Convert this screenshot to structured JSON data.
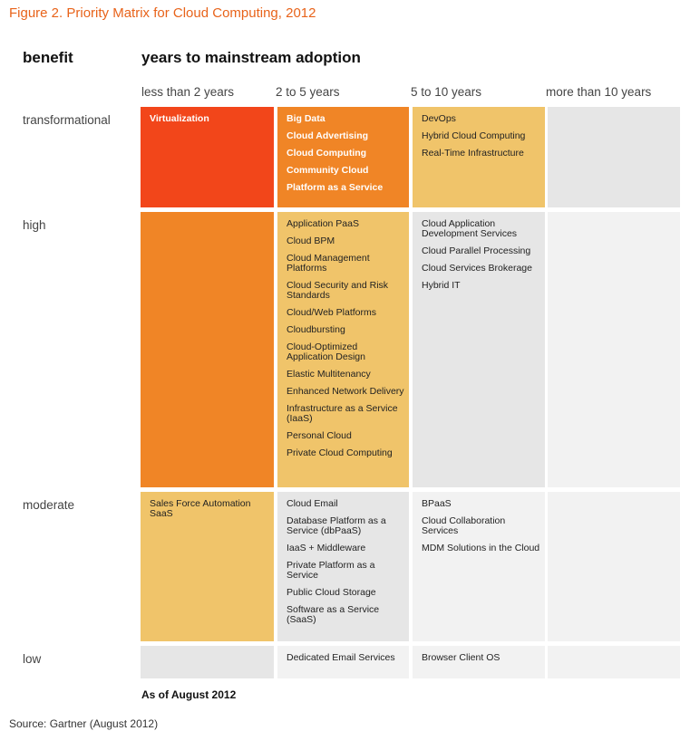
{
  "figure_title": "Figure 2. Priority Matrix for Cloud Computing, 2012",
  "headers": {
    "benefit": "benefit",
    "adoption": "years to mainstream adoption"
  },
  "columns": [
    "less than 2 years",
    "2 to 5 years",
    "5 to 10 years",
    "more than 10 years"
  ],
  "rows": [
    "transformational",
    "high",
    "moderate",
    "low"
  ],
  "colors": {
    "red": "#f2461a",
    "orange": "#f08526",
    "amber": "#f0c46a",
    "gray": "#e6e6e6",
    "light": "#f2f2f2"
  },
  "cells": {
    "transformational": {
      "lt2": {
        "color": "red",
        "bold": true,
        "items": [
          "Virtualization"
        ]
      },
      "y2to5": {
        "color": "orange",
        "bold": true,
        "items": [
          "Big Data",
          "Cloud Advertising",
          "Cloud Computing",
          "Community Cloud",
          "Platform as a Service"
        ]
      },
      "y5to10": {
        "color": "amber",
        "bold": false,
        "items": [
          "DevOps",
          "Hybrid Cloud Computing",
          "Real-Time Infrastructure"
        ]
      },
      "gt10": {
        "color": "gray",
        "bold": false,
        "items": []
      }
    },
    "high": {
      "lt2": {
        "color": "orange",
        "bold": false,
        "items": []
      },
      "y2to5": {
        "color": "amber",
        "bold": false,
        "items": [
          "Application PaaS",
          "Cloud BPM",
          "Cloud Management Platforms",
          "Cloud Security and Risk Standards",
          "Cloud/Web Platforms",
          "Cloudbursting",
          "Cloud-Optimized Application Design",
          "Elastic Multitenancy",
          "Enhanced Network Delivery",
          "Infrastructure as a Service (IaaS)",
          "Personal Cloud",
          "Private Cloud Computing"
        ]
      },
      "y5to10": {
        "color": "gray",
        "bold": false,
        "items": [
          "Cloud Application Development Services",
          "Cloud Parallel Processing",
          "Cloud Services Brokerage",
          "Hybrid IT"
        ]
      },
      "gt10": {
        "color": "light",
        "bold": false,
        "items": []
      }
    },
    "moderate": {
      "lt2": {
        "color": "amber",
        "bold": false,
        "items": [
          "Sales Force Automation SaaS"
        ]
      },
      "y2to5": {
        "color": "gray",
        "bold": false,
        "items": [
          "Cloud Email",
          "Database Platform as a Service (dbPaaS)",
          "IaaS + Middleware",
          "Private Platform as a Service",
          "Public Cloud Storage",
          "Software as a Service (SaaS)"
        ]
      },
      "y5to10": {
        "color": "light",
        "bold": false,
        "items": [
          "BPaaS",
          "Cloud Collaboration Services",
          "MDM Solutions in the Cloud"
        ]
      },
      "gt10": {
        "color": "light",
        "bold": false,
        "items": []
      }
    },
    "low": {
      "lt2": {
        "color": "gray",
        "bold": false,
        "items": []
      },
      "y2to5": {
        "color": "light",
        "bold": false,
        "items": [
          "Dedicated Email Services"
        ]
      },
      "y5to10": {
        "color": "light",
        "bold": false,
        "items": [
          "Browser Client OS"
        ]
      },
      "gt10": {
        "color": "light",
        "bold": false,
        "items": []
      }
    }
  },
  "footnote": "As of August 2012",
  "source": "Source: Gartner (August 2012)"
}
